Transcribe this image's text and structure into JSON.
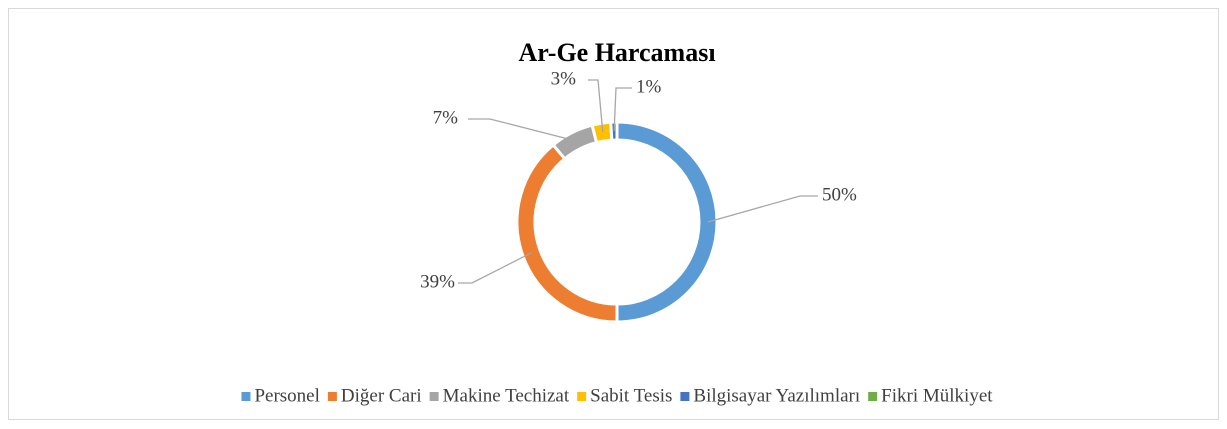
{
  "chart_data": {
    "type": "donut",
    "title": "Ar-Ge Harcaması",
    "categories": [
      "Personel",
      "Diğer Cari",
      "Makine Techizat",
      "Sabit Tesis",
      "Bilgisayar Yazılımları",
      "Fikri Mülkiyet"
    ],
    "values": [
      50,
      39,
      7,
      3,
      1,
      0
    ],
    "value_labels": [
      "50%",
      "39%",
      "7%",
      "3%",
      "1%",
      null
    ],
    "colors": [
      "#5b9bd5",
      "#ed7d31",
      "#a5a5a5",
      "#ffc000",
      "#4472c4",
      "#70ad47"
    ],
    "legend": "bottom"
  }
}
